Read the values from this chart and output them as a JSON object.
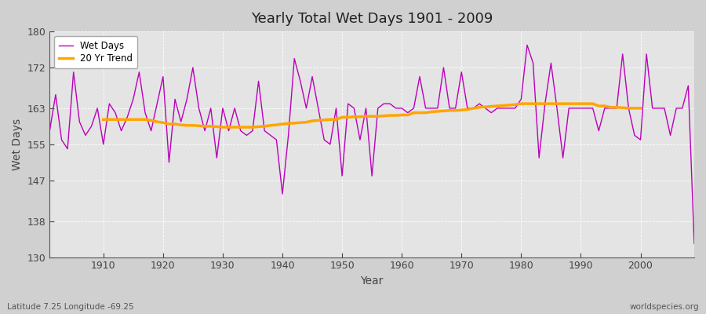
{
  "title": "Yearly Total Wet Days 1901 - 2009",
  "xlabel": "Year",
  "ylabel": "Wet Days",
  "subtitle_left": "Latitude 7.25 Longitude -69.25",
  "subtitle_right": "worldspecies.org",
  "wet_days_color": "#bb00bb",
  "trend_color": "#FFA500",
  "fig_bg_color": "#d8d8d8",
  "plot_bg_color": "#e8e8e8",
  "ylim": [
    130,
    180
  ],
  "yticks": [
    130,
    138,
    147,
    155,
    163,
    172,
    180
  ],
  "xticks": [
    1910,
    1920,
    1930,
    1940,
    1950,
    1960,
    1970,
    1980,
    1990,
    2000
  ],
  "xlim": [
    1901,
    2009
  ],
  "years": [
    1901,
    1902,
    1903,
    1904,
    1905,
    1906,
    1907,
    1908,
    1909,
    1910,
    1911,
    1912,
    1913,
    1914,
    1915,
    1916,
    1917,
    1918,
    1919,
    1920,
    1921,
    1922,
    1923,
    1924,
    1925,
    1926,
    1927,
    1928,
    1929,
    1930,
    1931,
    1932,
    1933,
    1934,
    1935,
    1936,
    1937,
    1938,
    1939,
    1940,
    1941,
    1942,
    1943,
    1944,
    1945,
    1946,
    1947,
    1948,
    1949,
    1950,
    1951,
    1952,
    1953,
    1954,
    1955,
    1956,
    1957,
    1958,
    1959,
    1960,
    1961,
    1962,
    1963,
    1964,
    1965,
    1966,
    1967,
    1968,
    1969,
    1970,
    1971,
    1972,
    1973,
    1974,
    1975,
    1976,
    1977,
    1978,
    1979,
    1980,
    1981,
    1982,
    1983,
    1984,
    1985,
    1986,
    1987,
    1988,
    1989,
    1990,
    1991,
    1992,
    1993,
    1994,
    1995,
    1996,
    1997,
    1998,
    1999,
    2000,
    2001,
    2002,
    2003,
    2004,
    2005,
    2006,
    2007,
    2008,
    2009
  ],
  "wet_days": [
    158,
    166,
    156,
    154,
    171,
    160,
    157,
    159,
    163,
    155,
    164,
    162,
    158,
    161,
    165,
    171,
    162,
    158,
    164,
    170,
    151,
    165,
    160,
    165,
    172,
    163,
    158,
    163,
    152,
    163,
    158,
    163,
    158,
    157,
    158,
    169,
    158,
    157,
    156,
    144,
    157,
    174,
    169,
    163,
    170,
    163,
    156,
    155,
    163,
    148,
    164,
    163,
    156,
    163,
    148,
    163,
    164,
    164,
    163,
    163,
    162,
    163,
    170,
    163,
    163,
    163,
    172,
    163,
    163,
    171,
    163,
    163,
    164,
    163,
    162,
    163,
    163,
    163,
    163,
    165,
    177,
    173,
    152,
    164,
    173,
    163,
    152,
    163,
    163,
    163,
    163,
    163,
    158,
    163,
    163,
    163,
    175,
    163,
    157,
    156,
    175,
    163,
    163,
    163,
    157,
    163,
    163,
    168,
    133
  ],
  "trend_years": [
    1910,
    1911,
    1912,
    1913,
    1914,
    1915,
    1916,
    1917,
    1918,
    1919,
    1920,
    1921,
    1922,
    1923,
    1924,
    1925,
    1926,
    1927,
    1928,
    1929,
    1930,
    1931,
    1932,
    1933,
    1934,
    1935,
    1936,
    1937,
    1938,
    1939,
    1940,
    1941,
    1942,
    1943,
    1944,
    1945,
    1946,
    1947,
    1948,
    1949,
    1950,
    1951,
    1952,
    1953,
    1954,
    1955,
    1956,
    1957,
    1958,
    1959,
    1960,
    1961,
    1962,
    1963,
    1964,
    1965,
    1966,
    1967,
    1968,
    1969,
    1970,
    1971,
    1972,
    1973,
    1974,
    1975,
    1976,
    1977,
    1978,
    1979,
    1980,
    1981,
    1982,
    1983,
    1984,
    1985,
    1986,
    1987,
    1988,
    1989,
    1990,
    1991,
    1992,
    1993,
    1994,
    1995,
    1996,
    1997,
    1998,
    1999,
    2000
  ],
  "trend_values": [
    160.5,
    160.5,
    160.5,
    160.5,
    160.5,
    160.5,
    160.5,
    160.5,
    160.3,
    160.0,
    159.8,
    159.5,
    159.5,
    159.3,
    159.2,
    159.2,
    159.1,
    159.0,
    159.0,
    158.9,
    158.8,
    158.8,
    158.8,
    158.8,
    158.8,
    158.8,
    158.9,
    159.0,
    159.2,
    159.3,
    159.5,
    159.6,
    159.7,
    159.8,
    159.9,
    160.2,
    160.3,
    160.4,
    160.5,
    160.5,
    161.0,
    161.0,
    161.1,
    161.1,
    161.2,
    161.2,
    161.2,
    161.3,
    161.4,
    161.4,
    161.5,
    161.5,
    162.0,
    162.0,
    162.0,
    162.2,
    162.3,
    162.4,
    162.5,
    162.5,
    162.6,
    162.7,
    163.0,
    163.2,
    163.3,
    163.4,
    163.5,
    163.6,
    163.7,
    163.8,
    164.0,
    164.0,
    164.0,
    164.0,
    164.0,
    164.0,
    164.0,
    164.0,
    164.0,
    164.0,
    164.0,
    164.0,
    164.0,
    163.5,
    163.5,
    163.2,
    163.2,
    163.1,
    163.0,
    163.0,
    163.0
  ]
}
